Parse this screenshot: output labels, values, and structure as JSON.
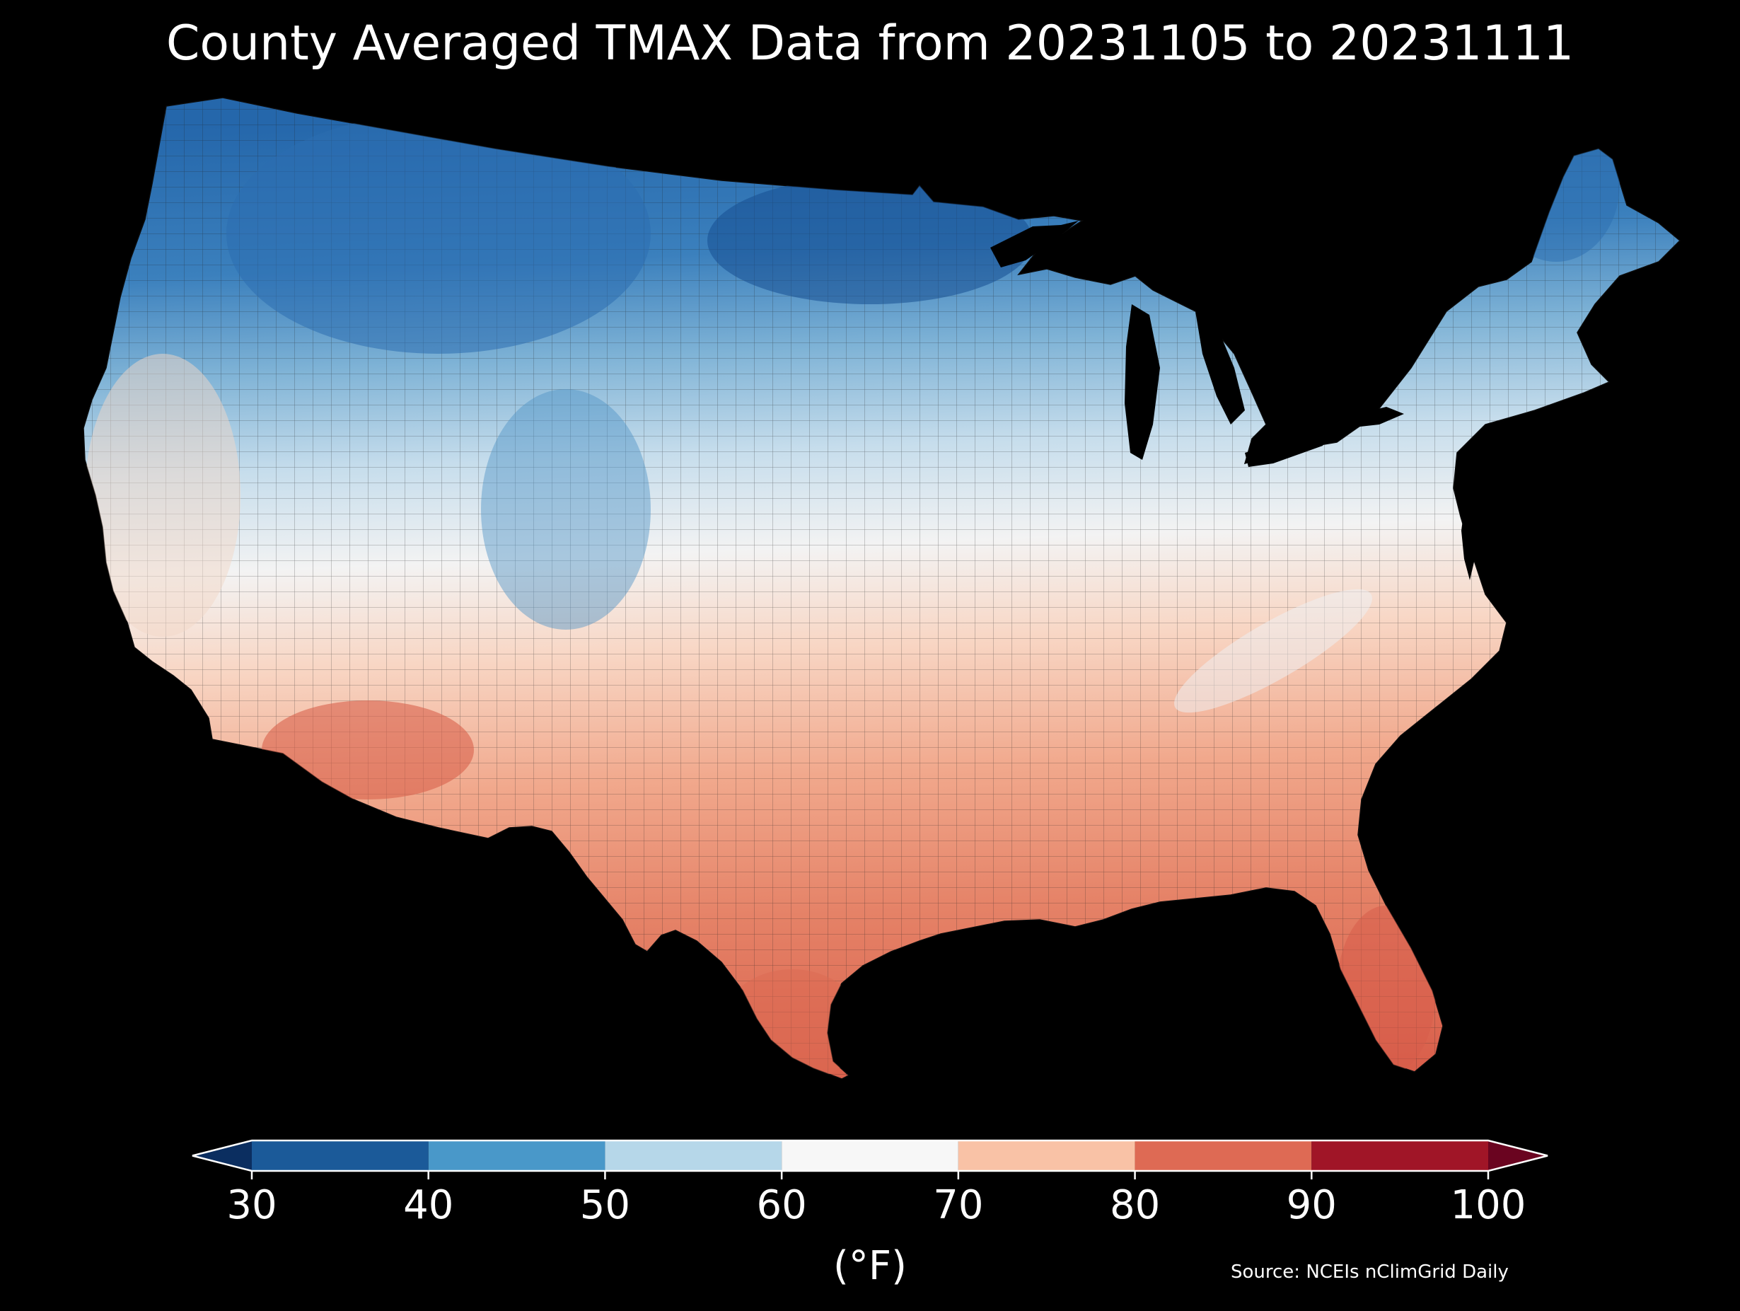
{
  "title": "County Averaged TMAX Data from 20231105 to 20231111",
  "source": "Source: NCEIs nClimGrid Daily",
  "colorbar": {
    "label": "(°F)",
    "ticks": [
      "30",
      "40",
      "50",
      "60",
      "70",
      "80",
      "90",
      "100"
    ],
    "bins": [
      {
        "min": 30,
        "max": 40,
        "color": "#1b5a99"
      },
      {
        "min": 40,
        "max": 50,
        "color": "#4998c9"
      },
      {
        "min": 50,
        "max": 60,
        "color": "#b6d7e9"
      },
      {
        "min": 60,
        "max": 70,
        "color": "#f7f7f7"
      },
      {
        "min": 70,
        "max": 80,
        "color": "#f9c2a6"
      },
      {
        "min": 80,
        "max": 90,
        "color": "#de6a54"
      },
      {
        "min": 90,
        "max": 100,
        "color": "#a01527"
      }
    ],
    "under_color": "#0b2e60",
    "over_color": "#6a0420",
    "extend": "both"
  },
  "map": {
    "region": "Contiguous United States counties",
    "variable": "TMAX",
    "background": "#000000",
    "border_color": "#222222"
  }
}
